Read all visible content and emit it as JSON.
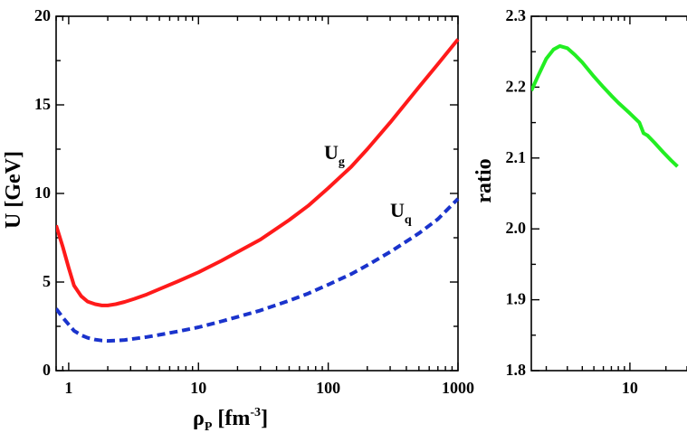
{
  "chart_data": [
    {
      "type": "line",
      "x_scale": "log",
      "xlim": [
        0.8,
        1000
      ],
      "ylim": [
        0,
        20
      ],
      "x_ticks": [
        {
          "value": 1,
          "label": "1"
        },
        {
          "value": 10,
          "label": "10"
        },
        {
          "value": 100,
          "label": "100"
        },
        {
          "value": 1000,
          "label": "1000"
        }
      ],
      "y_ticks": [
        {
          "value": 0,
          "label": "0"
        },
        {
          "value": 5,
          "label": "5"
        },
        {
          "value": 10,
          "label": "10"
        },
        {
          "value": 15,
          "label": "15"
        },
        {
          "value": 20,
          "label": "20"
        }
      ],
      "xlabel": {
        "main": "ρ",
        "sub": "P",
        "unit": " [fm",
        "exp": "-3",
        "close": "]"
      },
      "ylabel": "U [GeV]",
      "grid": false,
      "series": [
        {
          "name": "U",
          "name_sub": "g",
          "color": "#ff1a1a",
          "dash": "solid",
          "x": [
            0.8,
            0.9,
            1.0,
            1.1,
            1.25,
            1.4,
            1.6,
            1.8,
            2.0,
            2.3,
            2.7,
            3.2,
            4,
            5,
            7,
            10,
            15,
            20,
            30,
            50,
            70,
            100,
            150,
            200,
            300,
            500,
            700,
            1000
          ],
          "y": [
            8.2,
            7.0,
            5.8,
            4.8,
            4.2,
            3.9,
            3.75,
            3.68,
            3.68,
            3.75,
            3.88,
            4.05,
            4.3,
            4.6,
            5.05,
            5.55,
            6.2,
            6.7,
            7.4,
            8.5,
            9.3,
            10.3,
            11.5,
            12.5,
            14.0,
            16.0,
            17.3,
            18.7
          ]
        },
        {
          "name": "U",
          "name_sub": "q",
          "color": "#1a33cc",
          "dash": "dashed",
          "x": [
            0.8,
            0.9,
            1.0,
            1.1,
            1.25,
            1.4,
            1.6,
            1.8,
            2.0,
            2.3,
            2.7,
            3.2,
            4,
            5,
            7,
            10,
            15,
            20,
            30,
            50,
            70,
            100,
            150,
            200,
            300,
            500,
            700,
            1000
          ],
          "y": [
            3.5,
            3.0,
            2.6,
            2.25,
            2.0,
            1.85,
            1.75,
            1.7,
            1.68,
            1.7,
            1.73,
            1.8,
            1.9,
            2.02,
            2.22,
            2.45,
            2.78,
            3.03,
            3.4,
            3.95,
            4.35,
            4.85,
            5.45,
            5.95,
            6.7,
            7.75,
            8.55,
            9.7
          ]
        }
      ]
    },
    {
      "type": "line",
      "x_scale": "log",
      "xlim": [
        1.5,
        30
      ],
      "ylim": [
        1.8,
        2.3
      ],
      "x_ticks": [
        {
          "value": 10,
          "label": "10"
        }
      ],
      "y_ticks": [
        {
          "value": 1.8,
          "label": "1.8"
        },
        {
          "value": 1.9,
          "label": "1.9"
        },
        {
          "value": 2.0,
          "label": "2.0"
        },
        {
          "value": 2.1,
          "label": "2.1"
        },
        {
          "value": 2.2,
          "label": "2.2"
        },
        {
          "value": 2.3,
          "label": "2.3"
        }
      ],
      "ylabel": "ratio",
      "grid": false,
      "series": [
        {
          "color": "#22ee22",
          "dash": "solid",
          "x": [
            1.5,
            1.7,
            2.0,
            2.3,
            2.6,
            3.0,
            3.5,
            4.0,
            5.0,
            6.0,
            7.0,
            8.0,
            10.0,
            12.0,
            13.0,
            14.0,
            16.0,
            19.0,
            22.0,
            25.0
          ],
          "y": [
            2.195,
            2.215,
            2.24,
            2.253,
            2.258,
            2.255,
            2.245,
            2.235,
            2.215,
            2.2,
            2.188,
            2.178,
            2.163,
            2.15,
            2.135,
            2.132,
            2.122,
            2.108,
            2.097,
            2.088
          ]
        }
      ]
    }
  ]
}
